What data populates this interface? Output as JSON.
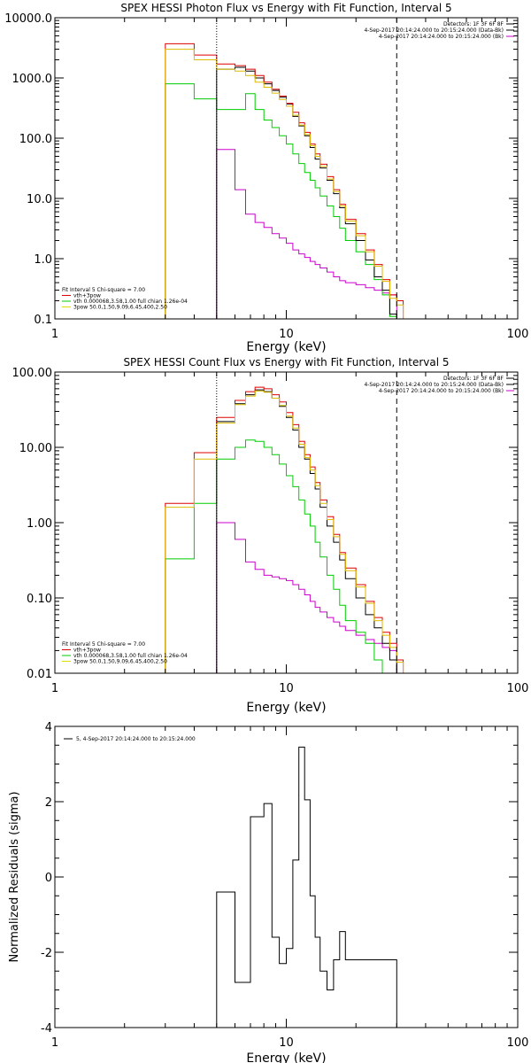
{
  "chart_data": [
    {
      "type": "line",
      "title": "SPEX HESSI Photon Flux vs Energy with Fit Function, Interval 5",
      "xlabel": "Energy (keV)",
      "ylabel": "",
      "xscale": "log",
      "yscale": "log",
      "xlim": [
        1,
        100
      ],
      "ylim": [
        0.1,
        10000
      ],
      "xtick_values": [
        1,
        10,
        100
      ],
      "xtick_labels": [
        "1",
        "10",
        "100"
      ],
      "ytick_values": [
        0.1,
        1,
        10,
        100,
        1000,
        10000
      ],
      "ytick_labels": [
        "0.1",
        "1.0",
        "10.0",
        "100.0",
        "1000.0",
        "10000.0"
      ],
      "vlines": [
        {
          "x": 5,
          "style": "dotted"
        },
        {
          "x": 30,
          "style": "dashed"
        }
      ],
      "header_lines": [
        {
          "text": "Detectors: 1F 3F 6F 8F",
          "color": "#000000"
        },
        {
          "text": "4-Sep-2017 20:14:24.000 to 20:15:24.000 (Data-Bk)",
          "color": "#000000"
        },
        {
          "text": "4-Sep-2017 20:14:24.000 to 20:15:24.000 (Bk)",
          "color": "#cc00cc"
        }
      ],
      "fit_lines": [
        {
          "text": "Fit Interval 5   Chi-square = 7.00",
          "color": "#000000"
        },
        {
          "text": "vth+3pow",
          "color": "#dd0000"
        },
        {
          "text": "vth 0.000068,3.58,1.00   full chian 1.26e-04",
          "color": "#00cc00"
        },
        {
          "text": "3pow 50.0,1.50,9.09,6.45,400,2.50",
          "color": "#dddd00"
        }
      ],
      "edges": [
        3,
        4,
        5,
        6,
        6.67,
        7.33,
        8,
        8.67,
        9.33,
        10,
        10.67,
        11.33,
        12,
        12.67,
        13.33,
        14,
        15,
        16,
        17,
        18,
        20,
        22,
        24,
        26,
        28,
        30,
        32,
        36
      ],
      "series": [
        {
          "color": "#cc00cc",
          "values": [
            null,
            null,
            65,
            14,
            5.5,
            4,
            3.3,
            2.6,
            2.2,
            1.8,
            1.4,
            1.2,
            1.05,
            0.9,
            0.8,
            0.7,
            0.6,
            0.5,
            0.43,
            0.4,
            0.37,
            0.33,
            0.3,
            0.27,
            0.25,
            null,
            null
          ]
        },
        {
          "color": "#00cc00",
          "values": [
            800,
            450,
            300,
            300,
            550,
            300,
            200,
            150,
            110,
            80,
            55,
            38,
            27,
            20,
            15,
            11,
            7.5,
            5,
            3.2,
            2,
            1.3,
            0.8,
            0.45,
            0.25,
            0.11,
            null,
            null
          ]
        },
        {
          "color": "#000000",
          "values": [
            null,
            null,
            1400,
            1500,
            1300,
            1000,
            800,
            620,
            480,
            370,
            230,
            160,
            110,
            70,
            45,
            32,
            20,
            12,
            7,
            3.8,
            2,
            0.95,
            0.5,
            0.3,
            0.12,
            null,
            null
          ]
        },
        {
          "color": "#dd0000",
          "values": [
            3700,
            2400,
            1700,
            1600,
            1400,
            1100,
            850,
            650,
            500,
            380,
            270,
            180,
            125,
            80,
            55,
            37,
            23,
            14,
            8,
            4.5,
            2.6,
            1.4,
            0.8,
            0.45,
            0.25,
            0.2,
            0.1
          ]
        },
        {
          "color": "#ddbb00",
          "values": [
            3000,
            2000,
            1400,
            1300,
            1100,
            850,
            700,
            560,
            440,
            340,
            240,
            165,
            115,
            75,
            50,
            34,
            21,
            13,
            7.5,
            4.2,
            2.4,
            1.3,
            0.75,
            0.42,
            0.22,
            0.17,
            0.1
          ]
        }
      ]
    },
    {
      "type": "line",
      "title": "SPEX HESSI Count Flux vs Energy with Fit Function, Interval 5",
      "xlabel": "Energy (keV)",
      "ylabel": "",
      "xscale": "log",
      "yscale": "log",
      "xlim": [
        1,
        100
      ],
      "ylim": [
        0.01,
        100
      ],
      "xtick_values": [
        1,
        10,
        100
      ],
      "xtick_labels": [
        "1",
        "10",
        "100"
      ],
      "ytick_values": [
        0.01,
        0.1,
        1,
        10,
        100
      ],
      "ytick_labels": [
        "0.01",
        "0.10",
        "1.00",
        "10.00",
        "100.00"
      ],
      "vlines": [
        {
          "x": 5,
          "style": "dotted"
        },
        {
          "x": 30,
          "style": "dashed"
        }
      ],
      "header_lines": [
        {
          "text": "Detectors: 1F 3F 6F 8F",
          "color": "#000000"
        },
        {
          "text": "4-Sep-2017 20:14:24.000 to 20:15:24.000 (Data-Bk)",
          "color": "#000000"
        },
        {
          "text": "4-Sep-2017 20:14:24.000 to 20:15:24.000 (Bk)",
          "color": "#cc00cc"
        }
      ],
      "fit_lines": [
        {
          "text": "Fit Interval 5   Chi-square = 7.00",
          "color": "#000000"
        },
        {
          "text": "vth+3pow",
          "color": "#dd0000"
        },
        {
          "text": "vth 0.000068,3.58,1.00   full chian 1.26e-04",
          "color": "#00cc00"
        },
        {
          "text": "3pow 50.0,1.50,9.09,6.45,400,2.50",
          "color": "#dddd00"
        }
      ],
      "edges": [
        3,
        4,
        5,
        6,
        6.67,
        7.33,
        8,
        8.67,
        9.33,
        10,
        10.67,
        11.33,
        12,
        12.67,
        13.33,
        14,
        15,
        16,
        17,
        18,
        20,
        22,
        24,
        26,
        28,
        30,
        32,
        36
      ],
      "series": [
        {
          "color": "#cc00cc",
          "values": [
            null,
            null,
            1.0,
            0.6,
            0.3,
            0.24,
            0.2,
            0.19,
            0.18,
            0.17,
            0.15,
            0.13,
            0.11,
            0.09,
            0.075,
            0.065,
            0.055,
            0.048,
            0.042,
            0.037,
            0.032,
            0.028,
            0.025,
            0.022,
            0.02,
            null,
            null
          ]
        },
        {
          "color": "#00cc00",
          "values": [
            0.33,
            1.8,
            7,
            10,
            12.5,
            12,
            10,
            8,
            6,
            4.2,
            3,
            2,
            1.3,
            0.9,
            0.55,
            0.35,
            0.2,
            0.13,
            0.08,
            0.05,
            0.035,
            0.025,
            0.015,
            0.01,
            null,
            null,
            null
          ]
        },
        {
          "color": "#000000",
          "values": [
            null,
            null,
            22,
            38,
            50,
            58,
            55,
            45,
            35,
            25,
            17,
            10,
            7,
            4.5,
            2.8,
            1.6,
            0.9,
            0.55,
            0.32,
            0.18,
            0.1,
            0.06,
            0.04,
            0.025,
            0.015,
            null,
            null
          ]
        },
        {
          "color": "#dd0000",
          "values": [
            1.8,
            8.5,
            25,
            42,
            55,
            63,
            60,
            50,
            40,
            29,
            20,
            12,
            8,
            5.5,
            3.4,
            2,
            1.2,
            0.7,
            0.4,
            0.25,
            0.15,
            0.09,
            0.055,
            0.035,
            0.025,
            0.015,
            0.01
          ]
        },
        {
          "color": "#ddbb00",
          "values": [
            1.6,
            7,
            21,
            37,
            48,
            56,
            54,
            45,
            36,
            26,
            18,
            11,
            7.3,
            5,
            3.1,
            1.8,
            1.1,
            0.65,
            0.38,
            0.23,
            0.14,
            0.085,
            0.05,
            0.032,
            0.022,
            0.014,
            0.01
          ]
        }
      ]
    },
    {
      "type": "line",
      "title": "",
      "xlabel": "Energy (keV)",
      "ylabel": "Normalized Residuals (sigma)",
      "xscale": "log",
      "yscale": "linear",
      "xlim": [
        1,
        100
      ],
      "ylim": [
        -4,
        4
      ],
      "xtick_values": [
        1,
        10,
        100
      ],
      "xtick_labels": [
        "1",
        "10",
        "100"
      ],
      "ytick_values": [
        -4,
        -2,
        0,
        2,
        4
      ],
      "ytick_labels": [
        "-4",
        "-2",
        "0",
        "2",
        "4"
      ],
      "vlines": [],
      "header_lines": [],
      "legend": "5, 4-Sep-2017 20:14:24.000 to 20:15:24.000",
      "edges": [
        5,
        6,
        7,
        8,
        8.67,
        9.33,
        10,
        10.67,
        11.33,
        12,
        12.67,
        13.33,
        14,
        15,
        16,
        17,
        18,
        20,
        22,
        24,
        26,
        28,
        30
      ],
      "series": [
        {
          "color": "#000000",
          "values": [
            -0.4,
            -2.8,
            1.6,
            1.95,
            -1.6,
            -2.3,
            -1.9,
            0.45,
            3.45,
            2.05,
            -0.5,
            -1.6,
            -2.5,
            -3.0,
            -2.2,
            -1.45,
            -2.2,
            -2.2,
            -2.2,
            -2.2,
            -2.2,
            -2.2
          ]
        }
      ]
    }
  ]
}
